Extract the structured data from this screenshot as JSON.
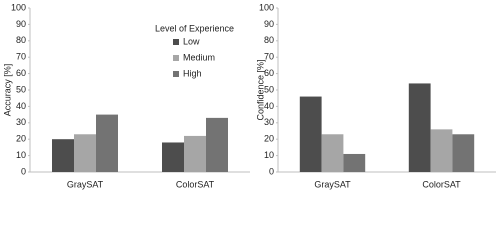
{
  "chart_data": [
    {
      "type": "bar",
      "ylabel": "Accuracy [%]",
      "categories": [
        "GraySAT",
        "ColorSAT"
      ],
      "series": [
        {
          "name": "Low",
          "color": "#4d4d4d",
          "values": [
            20,
            18
          ]
        },
        {
          "name": "Medium",
          "color": "#a6a6a6",
          "values": [
            23,
            22
          ]
        },
        {
          "name": "High",
          "color": "#737373",
          "values": [
            35,
            33
          ]
        }
      ],
      "ylim": [
        0,
        100
      ],
      "yticks": [
        0,
        10,
        20,
        30,
        40,
        50,
        60,
        70,
        80,
        90,
        100
      ],
      "legend": true,
      "legend_title": "Level of Experience"
    },
    {
      "type": "bar",
      "ylabel": "Confidence [%]",
      "categories": [
        "GraySAT",
        "ColorSAT"
      ],
      "series": [
        {
          "name": "Low",
          "color": "#4d4d4d",
          "values": [
            46,
            54
          ]
        },
        {
          "name": "Medium",
          "color": "#a6a6a6",
          "values": [
            23,
            26
          ]
        },
        {
          "name": "High",
          "color": "#737373",
          "values": [
            11,
            23
          ]
        }
      ],
      "ylim": [
        0,
        100
      ],
      "yticks": [
        0,
        10,
        20,
        30,
        40,
        50,
        60,
        70,
        80,
        90,
        100
      ],
      "legend": false
    }
  ]
}
